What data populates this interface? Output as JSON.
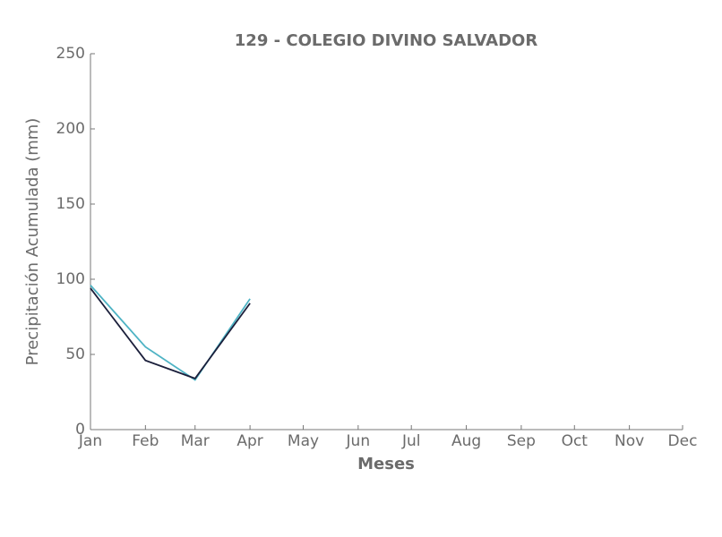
{
  "chart_data": {
    "type": "line",
    "title": "129 - COLEGIO DIVINO SALVADOR",
    "x_label": "Meses",
    "y_label": "Precipitación Acumulada (mm)",
    "categories": [
      "Jan",
      "Feb",
      "Mar",
      "Apr",
      "May",
      "Jun",
      "Jul",
      "Aug",
      "Sep",
      "Oct",
      "Nov",
      "Dec"
    ],
    "series": [
      {
        "color": "#4eb3c4",
        "values": [
          96,
          55,
          33,
          87,
          null,
          null,
          null,
          null,
          null,
          null,
          null,
          null
        ]
      },
      {
        "color": "#1b1f3b",
        "values": [
          94,
          46,
          34,
          84,
          null,
          null,
          null,
          null,
          null,
          null,
          null,
          null
        ]
      }
    ],
    "ylim": [
      0,
      250
    ],
    "yticks": [
      0,
      50,
      100,
      150,
      200,
      250
    ],
    "grid": false
  }
}
